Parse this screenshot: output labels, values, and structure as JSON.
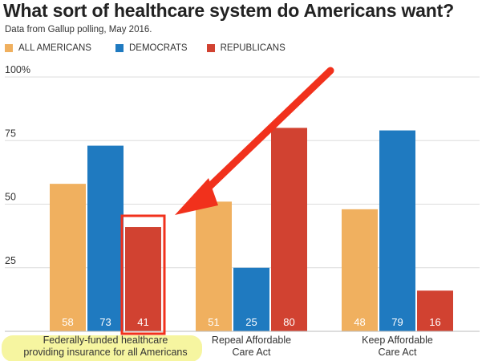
{
  "chart_data": {
    "type": "bar",
    "title": "What sort of healthcare system do Americans want?",
    "subtitle": "Data from Gallup polling, May 2016.",
    "categories": [
      [
        "Federally-funded healthcare",
        "providing insurance for all Americans"
      ],
      [
        "Repeal Affordable",
        "Care Act"
      ],
      [
        "Keep Affordable",
        "Care Act"
      ]
    ],
    "series": [
      {
        "name": "ALL AMERICANS",
        "color": "#f0b05f",
        "values": [
          58,
          51,
          48
        ]
      },
      {
        "name": "DEMOCRATS",
        "color": "#1f7ac0",
        "values": [
          73,
          25,
          79
        ]
      },
      {
        "name": "REPUBLICANS",
        "color": "#d14231",
        "values": [
          41,
          80,
          16
        ]
      }
    ],
    "ylim": [
      0,
      100
    ],
    "yticks": [
      "25",
      "50",
      "75",
      "100%"
    ],
    "grid": true,
    "legend_position": "top-left",
    "annotations": {
      "highlight_category": 0,
      "highlight_bar_series": 2,
      "highlight_color": "#f6f5a0",
      "arrow_color": "#f1311c",
      "box_color": "#f1311c"
    }
  }
}
